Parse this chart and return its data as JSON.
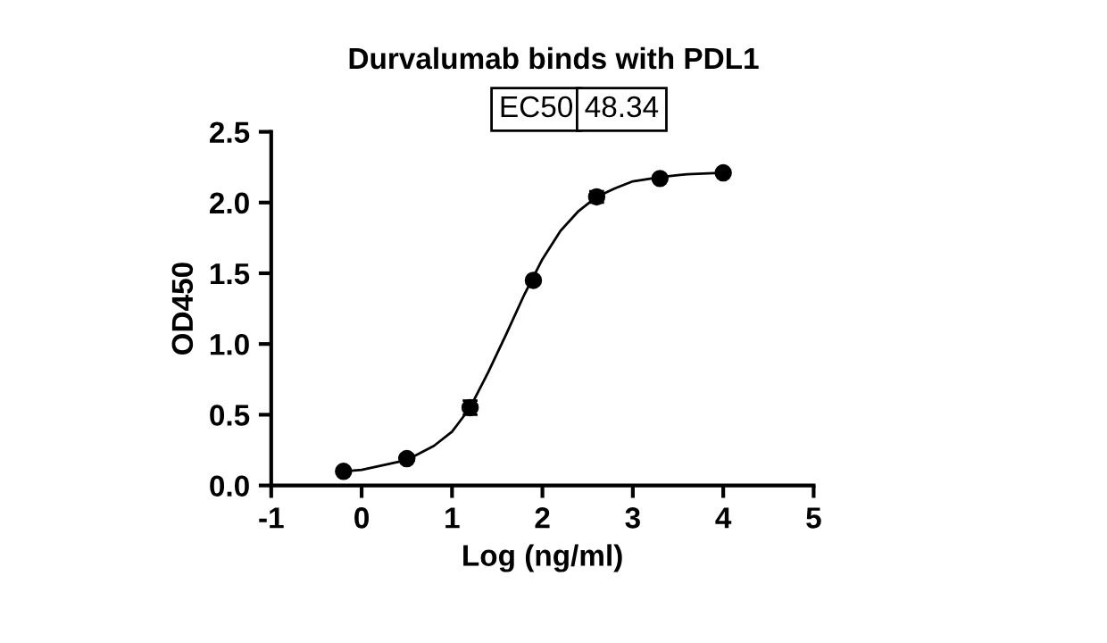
{
  "chart_data": {
    "type": "scatter",
    "title": "Durvalumab binds with PDL1",
    "xlabel": "Log (ng/ml)",
    "ylabel": "OD450",
    "annotations": [
      "EC50",
      "48.34"
    ],
    "xlim": [
      -1,
      5
    ],
    "xticks": [
      -1,
      0,
      1,
      2,
      3,
      4,
      5
    ],
    "ylim": [
      0,
      2.5
    ],
    "yticks": [
      {
        "value": 0,
        "label": "0.0"
      },
      0.5,
      {
        "value": 1,
        "label": "1.0"
      },
      1.5,
      {
        "value": 2,
        "label": "2.0"
      },
      2.5
    ],
    "grid": false,
    "series": [
      {
        "marker": "circle",
        "color": "#000000",
        "x": [
          -0.2,
          0.5,
          1.2,
          1.9,
          2.6,
          3.3,
          4.0
        ],
        "values": [
          0.1,
          0.19,
          0.55,
          1.45,
          2.04,
          2.17,
          2.21
        ],
        "errors": [
          null,
          null,
          0.05,
          null,
          0.04,
          null,
          null
        ]
      },
      {
        "type": "line",
        "color": "#000000",
        "line_style": "solid",
        "x": [
          -0.2,
          0,
          0.5,
          0.8,
          1.0,
          1.2,
          1.4,
          1.6,
          1.8,
          2.0,
          2.2,
          2.4,
          2.6,
          2.8,
          3.0,
          3.3,
          3.6,
          4.0
        ],
        "values": [
          0.1,
          0.11,
          0.18,
          0.28,
          0.38,
          0.55,
          0.8,
          1.07,
          1.35,
          1.6,
          1.8,
          1.94,
          2.04,
          2.1,
          2.15,
          2.18,
          2.2,
          2.21
        ]
      }
    ]
  }
}
